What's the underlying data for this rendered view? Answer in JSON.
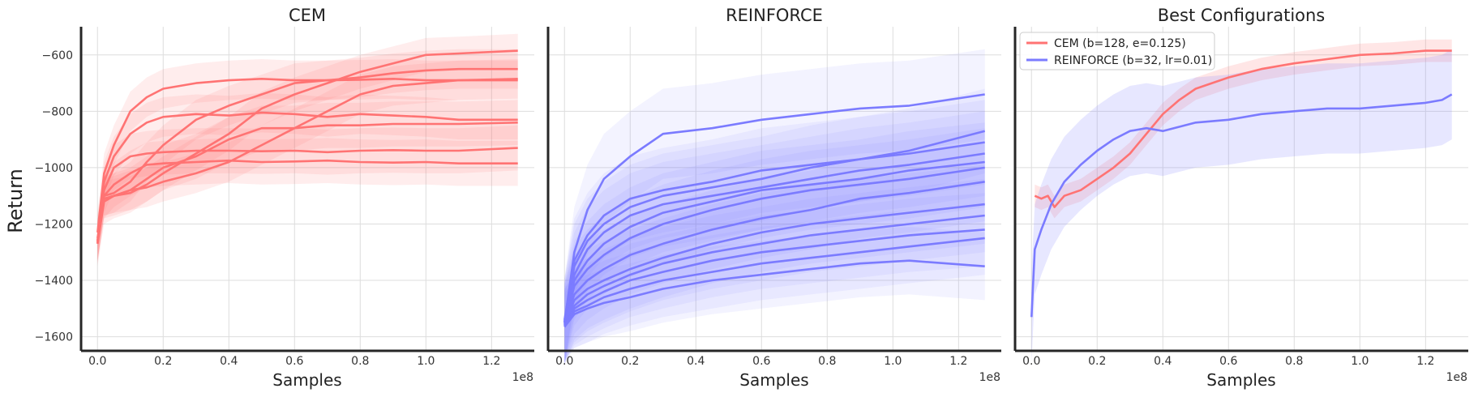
{
  "colors": {
    "cem": "#ff7373",
    "reinforce": "#7b7bff"
  },
  "chart_data": [
    {
      "type": "line",
      "title": "CEM",
      "xlabel": "Samples",
      "ylabel": "Return",
      "x_exponent_label": "1e8",
      "xlim": [
        -0.05,
        1.33
      ],
      "ylim": [
        -1650,
        -500
      ],
      "xticks": [
        0.0,
        0.2,
        0.4,
        0.6,
        0.8,
        1.0,
        1.2
      ],
      "xtick_labels": [
        "0.0",
        "0.2",
        "0.4",
        "0.6",
        "0.8",
        "1.0",
        "1.2"
      ],
      "yticks": [
        -1600,
        -1400,
        -1200,
        -1000,
        -800,
        -600
      ],
      "ytick_labels": [
        "−1600",
        "−1400",
        "−1200",
        "−1000",
        "−800",
        "−600"
      ],
      "color": "cem",
      "series": [
        {
          "x": [
            0.0,
            0.02,
            0.05,
            0.1,
            0.15,
            0.2,
            0.3,
            0.4,
            0.5,
            0.6,
            0.7,
            0.8,
            0.9,
            1.0,
            1.1,
            1.28
          ],
          "y": [
            -1270,
            -1050,
            -960,
            -880,
            -840,
            -820,
            -810,
            -815,
            -805,
            -810,
            -820,
            -810,
            -815,
            -820,
            -830,
            -830
          ],
          "band": 70
        },
        {
          "x": [
            0.0,
            0.02,
            0.05,
            0.1,
            0.15,
            0.2,
            0.3,
            0.4,
            0.5,
            0.6,
            0.7,
            0.8,
            0.9,
            1.0,
            1.1,
            1.28
          ],
          "y": [
            -1230,
            -1020,
            -920,
            -800,
            -750,
            -720,
            -700,
            -690,
            -685,
            -690,
            -690,
            -688,
            -685,
            -690,
            -690,
            -690
          ],
          "band": 70
        },
        {
          "x": [
            0.0,
            0.02,
            0.05,
            0.1,
            0.15,
            0.2,
            0.3,
            0.4,
            0.5,
            0.6,
            0.7,
            0.8,
            0.9,
            1.0,
            1.1,
            1.28
          ],
          "y": [
            -1250,
            -1100,
            -1060,
            -1020,
            -990,
            -985,
            -980,
            -975,
            -980,
            -978,
            -975,
            -980,
            -982,
            -980,
            -985,
            -985
          ],
          "band": 80
        },
        {
          "x": [
            0.0,
            0.02,
            0.05,
            0.1,
            0.15,
            0.2,
            0.3,
            0.4,
            0.5,
            0.6,
            0.7,
            0.8,
            0.9,
            1.0,
            1.1,
            1.28
          ],
          "y": [
            -1260,
            -1080,
            -1000,
            -960,
            -950,
            -945,
            -940,
            -940,
            -942,
            -940,
            -945,
            -940,
            -938,
            -940,
            -940,
            -930
          ],
          "band": 80
        },
        {
          "x": [
            0.0,
            0.02,
            0.05,
            0.1,
            0.15,
            0.2,
            0.3,
            0.4,
            0.5,
            0.6,
            0.7,
            0.8,
            0.9,
            1.0,
            1.1,
            1.28
          ],
          "y": [
            -1270,
            -1120,
            -1100,
            -1080,
            -1040,
            -1000,
            -960,
            -900,
            -860,
            -860,
            -850,
            -850,
            -845,
            -845,
            -845,
            -840
          ],
          "band": 80
        },
        {
          "x": [
            0.0,
            0.02,
            0.05,
            0.1,
            0.15,
            0.2,
            0.3,
            0.4,
            0.5,
            0.6,
            0.7,
            0.8,
            0.9,
            1.0,
            1.1,
            1.28
          ],
          "y": [
            -1260,
            -1100,
            -1090,
            -1050,
            -980,
            -920,
            -830,
            -780,
            -740,
            -700,
            -690,
            -680,
            -665,
            -655,
            -650,
            -650
          ],
          "band": 70
        },
        {
          "x": [
            0.0,
            0.02,
            0.05,
            0.1,
            0.15,
            0.2,
            0.3,
            0.4,
            0.5,
            0.6,
            0.7,
            0.8,
            0.9,
            1.0,
            1.1,
            1.28
          ],
          "y": [
            -1260,
            -1110,
            -1100,
            -1080,
            -1070,
            -1050,
            -1020,
            -980,
            -920,
            -860,
            -800,
            -740,
            -710,
            -700,
            -690,
            -685
          ],
          "band": 70
        },
        {
          "x": [
            0.0,
            0.02,
            0.05,
            0.1,
            0.15,
            0.2,
            0.3,
            0.4,
            0.5,
            0.6,
            0.7,
            0.8,
            0.9,
            1.0,
            1.1,
            1.28
          ],
          "y": [
            -1265,
            -1110,
            -1100,
            -1090,
            -1060,
            -1020,
            -950,
            -880,
            -790,
            -740,
            -700,
            -660,
            -630,
            -600,
            -595,
            -585
          ],
          "band": 60
        }
      ]
    },
    {
      "type": "line",
      "title": "REINFORCE",
      "xlabel": "Samples",
      "x_exponent_label": "1e8",
      "xlim": [
        -0.05,
        1.33
      ],
      "ylim": [
        -1650,
        -500
      ],
      "xticks": [
        0.0,
        0.2,
        0.4,
        0.6,
        0.8,
        1.0,
        1.2
      ],
      "xtick_labels": [
        "0.0",
        "0.2",
        "0.4",
        "0.6",
        "0.8",
        "1.0",
        "1.2"
      ],
      "yticks": [
        -1600,
        -1400,
        -1200,
        -1000,
        -800,
        -600
      ],
      "color": "reinforce",
      "series": [
        {
          "x": [
            0.0,
            0.03,
            0.07,
            0.12,
            0.2,
            0.3,
            0.45,
            0.6,
            0.75,
            0.9,
            1.05,
            1.28
          ],
          "y": [
            -1550,
            -1300,
            -1150,
            -1040,
            -960,
            -880,
            -860,
            -830,
            -810,
            -790,
            -780,
            -740
          ],
          "band": 160
        },
        {
          "x": [
            0.0,
            0.03,
            0.07,
            0.12,
            0.2,
            0.3,
            0.45,
            0.6,
            0.75,
            0.9,
            1.05,
            1.28
          ],
          "y": [
            -1540,
            -1330,
            -1240,
            -1170,
            -1110,
            -1080,
            -1050,
            -1010,
            -990,
            -970,
            -940,
            -870
          ],
          "band": 150
        },
        {
          "x": [
            0.0,
            0.03,
            0.07,
            0.12,
            0.2,
            0.3,
            0.45,
            0.6,
            0.75,
            0.9,
            1.05,
            1.28
          ],
          "y": [
            -1550,
            -1350,
            -1260,
            -1200,
            -1140,
            -1100,
            -1070,
            -1040,
            -1000,
            -970,
            -950,
            -910
          ],
          "band": 150
        },
        {
          "x": [
            0.0,
            0.03,
            0.07,
            0.12,
            0.2,
            0.3,
            0.45,
            0.6,
            0.75,
            0.9,
            1.05,
            1.28
          ],
          "y": [
            -1545,
            -1380,
            -1290,
            -1230,
            -1170,
            -1130,
            -1100,
            -1070,
            -1040,
            -1010,
            -990,
            -950
          ],
          "band": 150
        },
        {
          "x": [
            0.0,
            0.03,
            0.07,
            0.12,
            0.2,
            0.3,
            0.45,
            0.6,
            0.75,
            0.9,
            1.05,
            1.28
          ],
          "y": [
            -1550,
            -1400,
            -1330,
            -1270,
            -1210,
            -1160,
            -1120,
            -1080,
            -1060,
            -1040,
            -1010,
            -980
          ],
          "band": 140
        },
        {
          "x": [
            0.0,
            0.03,
            0.07,
            0.12,
            0.2,
            0.3,
            0.45,
            0.6,
            0.75,
            0.9,
            1.05,
            1.28
          ],
          "y": [
            -1555,
            -1420,
            -1360,
            -1310,
            -1250,
            -1200,
            -1150,
            -1110,
            -1080,
            -1060,
            -1040,
            -1000
          ],
          "band": 140
        },
        {
          "x": [
            0.0,
            0.03,
            0.07,
            0.12,
            0.2,
            0.3,
            0.45,
            0.6,
            0.75,
            0.9,
            1.05,
            1.28
          ],
          "y": [
            -1550,
            -1450,
            -1400,
            -1360,
            -1310,
            -1270,
            -1220,
            -1180,
            -1150,
            -1110,
            -1090,
            -1050
          ],
          "band": 140
        },
        {
          "x": [
            0.0,
            0.03,
            0.07,
            0.12,
            0.2,
            0.3,
            0.45,
            0.6,
            0.75,
            0.9,
            1.05,
            1.28
          ],
          "y": [
            -1560,
            -1470,
            -1430,
            -1400,
            -1360,
            -1320,
            -1270,
            -1230,
            -1200,
            -1180,
            -1160,
            -1130
          ],
          "band": 140
        },
        {
          "x": [
            0.0,
            0.03,
            0.07,
            0.12,
            0.2,
            0.3,
            0.45,
            0.6,
            0.75,
            0.9,
            1.05,
            1.28
          ],
          "y": [
            -1560,
            -1490,
            -1450,
            -1420,
            -1380,
            -1340,
            -1300,
            -1270,
            -1240,
            -1220,
            -1200,
            -1170
          ],
          "band": 130
        },
        {
          "x": [
            0.0,
            0.03,
            0.07,
            0.12,
            0.2,
            0.3,
            0.45,
            0.6,
            0.75,
            0.9,
            1.05,
            1.28
          ],
          "y": [
            -1560,
            -1500,
            -1470,
            -1440,
            -1400,
            -1370,
            -1330,
            -1300,
            -1280,
            -1260,
            -1240,
            -1220
          ],
          "band": 130
        },
        {
          "x": [
            0.0,
            0.03,
            0.07,
            0.12,
            0.2,
            0.3,
            0.45,
            0.6,
            0.75,
            0.9,
            1.05,
            1.28
          ],
          "y": [
            -1565,
            -1510,
            -1490,
            -1460,
            -1430,
            -1400,
            -1370,
            -1340,
            -1320,
            -1300,
            -1280,
            -1250
          ],
          "band": 130
        },
        {
          "x": [
            0.0,
            0.03,
            0.07,
            0.12,
            0.2,
            0.3,
            0.45,
            0.6,
            0.75,
            0.9,
            1.05,
            1.28
          ],
          "y": [
            -1565,
            -1520,
            -1500,
            -1480,
            -1460,
            -1430,
            -1400,
            -1380,
            -1360,
            -1340,
            -1330,
            -1350
          ],
          "band": 120
        }
      ]
    },
    {
      "type": "line",
      "title": "Best Configurations",
      "xlabel": "Samples",
      "x_exponent_label": "1e8",
      "xlim": [
        -0.05,
        1.33
      ],
      "ylim": [
        -1650,
        -500
      ],
      "xticks": [
        0.0,
        0.2,
        0.4,
        0.6,
        0.8,
        1.0,
        1.2
      ],
      "xtick_labels": [
        "0.0",
        "0.2",
        "0.4",
        "0.6",
        "0.8",
        "1.0",
        "1.2"
      ],
      "yticks": [
        -1600,
        -1400,
        -1200,
        -1000,
        -800,
        -600
      ],
      "legend_position": "top-left",
      "series": [
        {
          "name": "CEM (b=128, e=0.125)",
          "color": "cem",
          "x": [
            0.01,
            0.03,
            0.05,
            0.07,
            0.1,
            0.15,
            0.2,
            0.25,
            0.3,
            0.35,
            0.4,
            0.45,
            0.5,
            0.6,
            0.7,
            0.8,
            0.9,
            1.0,
            1.1,
            1.2,
            1.28
          ],
          "y": [
            -1100,
            -1110,
            -1100,
            -1140,
            -1100,
            -1080,
            -1040,
            -1000,
            -950,
            -880,
            -810,
            -760,
            -720,
            -680,
            -650,
            -630,
            -615,
            -600,
            -595,
            -585,
            -585
          ],
          "band": 40
        },
        {
          "name": "REINFORCE (b=32, lr=0.01)",
          "color": "reinforce",
          "x": [
            0.0,
            0.01,
            0.03,
            0.06,
            0.1,
            0.15,
            0.2,
            0.25,
            0.3,
            0.35,
            0.4,
            0.5,
            0.6,
            0.7,
            0.8,
            0.9,
            1.0,
            1.1,
            1.2,
            1.25,
            1.28
          ],
          "y": [
            -1530,
            -1290,
            -1220,
            -1130,
            -1050,
            -990,
            -940,
            -900,
            -870,
            -860,
            -870,
            -840,
            -830,
            -810,
            -800,
            -790,
            -790,
            -780,
            -770,
            -760,
            -740
          ],
          "band": 160
        }
      ]
    }
  ]
}
